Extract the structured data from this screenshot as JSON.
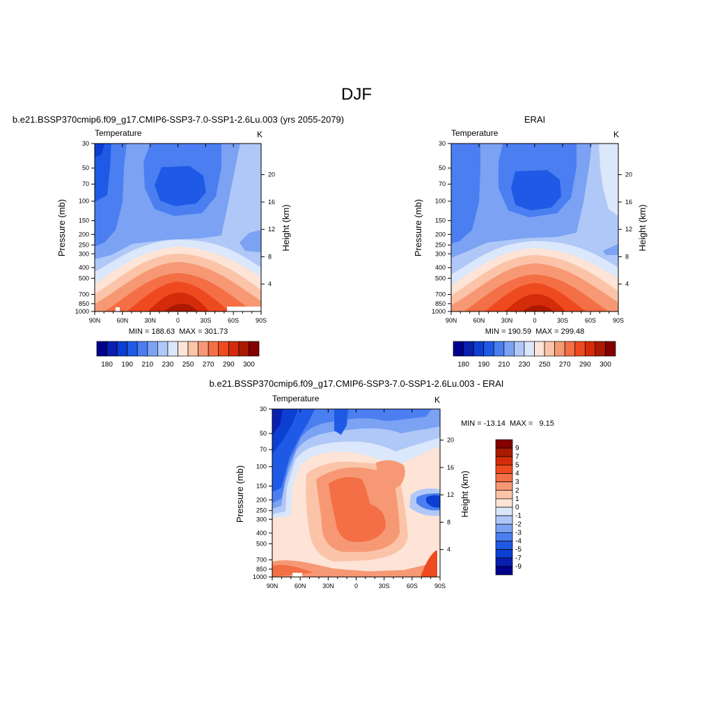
{
  "page_title": "DJF",
  "colors": {
    "c180": "#00008c",
    "c185": "#0a1eb0",
    "c190": "#0c3ed2",
    "c200": "#1f5ae6",
    "c210": "#4b7ef0",
    "c220": "#7ba2f3",
    "c230": "#b0c8f7",
    "c240": "#dbe7fa",
    "c250": "#fde4d6",
    "c260": "#fbc4a8",
    "c270": "#f79874",
    "c280": "#f46f45",
    "c290": "#ee4a20",
    "c300": "#d42b0a",
    "c310": "#ab1a00",
    "c320": "#840000"
  },
  "chart_data": [
    {
      "type": "heatmap",
      "panel": "model",
      "title": "b.e21.BSSP370cmip6.f09_g17.CMIP6-SSP3-7.0-SSP1-2.6Lu.003 (yrs 2055-2079)",
      "left_label": "Temperature",
      "right_label": "K",
      "ylabel": "Pressure (mb)",
      "ylabel_right": "Height (km)",
      "x_ticks": [
        "90N",
        "60N",
        "30N",
        "0",
        "30S",
        "60S",
        "90S"
      ],
      "y_ticks": [
        "30",
        "50",
        "70",
        "100",
        "150",
        "200",
        "250",
        "300",
        "400",
        "500",
        "700",
        "850",
        "1000"
      ],
      "y_right_ticks": [
        "20",
        "16",
        "12",
        "8",
        "4"
      ],
      "ylim": [
        1000,
        30
      ],
      "stats": "MIN = 188.63  MAX = 301.73",
      "colorbar": {
        "orientation": "horizontal",
        "labels": [
          "180",
          "190",
          "210",
          "230",
          "250",
          "270",
          "290",
          "300"
        ]
      },
      "contour_bands_K": [
        195,
        205,
        215,
        225,
        235,
        245,
        255,
        265,
        275,
        285,
        295,
        301.73
      ]
    },
    {
      "type": "heatmap",
      "panel": "obs",
      "title": "ERAI",
      "left_label": "Temperature",
      "right_label": "K",
      "ylabel": "Pressure (mb)",
      "ylabel_right": "Height (km)",
      "x_ticks": [
        "90N",
        "60N",
        "30N",
        "0",
        "30S",
        "60S",
        "90S"
      ],
      "y_ticks": [
        "30",
        "50",
        "70",
        "100",
        "150",
        "200",
        "250",
        "300",
        "400",
        "500",
        "700",
        "850",
        "1000"
      ],
      "y_right_ticks": [
        "20",
        "16",
        "12",
        "8",
        "4"
      ],
      "ylim": [
        1000,
        30
      ],
      "stats": "MIN = 190.59  MAX = 299.48",
      "colorbar": {
        "orientation": "horizontal",
        "labels": [
          "180",
          "190",
          "210",
          "230",
          "250",
          "270",
          "290",
          "300"
        ]
      },
      "contour_bands_K": [
        195,
        205,
        215,
        225,
        235,
        245,
        255,
        265,
        275,
        285,
        295,
        299.48
      ]
    },
    {
      "type": "heatmap",
      "panel": "diff",
      "title": "b.e21.BSSP370cmip6.f09_g17.CMIP6-SSP3-7.0-SSP1-2.6Lu.003 - ERAI",
      "left_label": "Temperature",
      "right_label": "K",
      "ylabel": "Pressure (mb)",
      "ylabel_right": "Height (km)",
      "x_ticks": [
        "90N",
        "60N",
        "30N",
        "0",
        "30S",
        "60S",
        "90S"
      ],
      "y_ticks": [
        "30",
        "50",
        "70",
        "100",
        "150",
        "200",
        "250",
        "300",
        "400",
        "500",
        "700",
        "850",
        "1000"
      ],
      "y_right_ticks": [
        "20",
        "16",
        "12",
        "8",
        "4"
      ],
      "ylim": [
        1000,
        30
      ],
      "stats": "MIN = -13.14  MAX =   9.15",
      "colorbar": {
        "orientation": "vertical",
        "labels": [
          "9",
          "7",
          "5",
          "4",
          "3",
          "2",
          "1",
          "0",
          "-1",
          "-2",
          "-3",
          "-4",
          "-5",
          "-7",
          "-9"
        ]
      }
    }
  ]
}
